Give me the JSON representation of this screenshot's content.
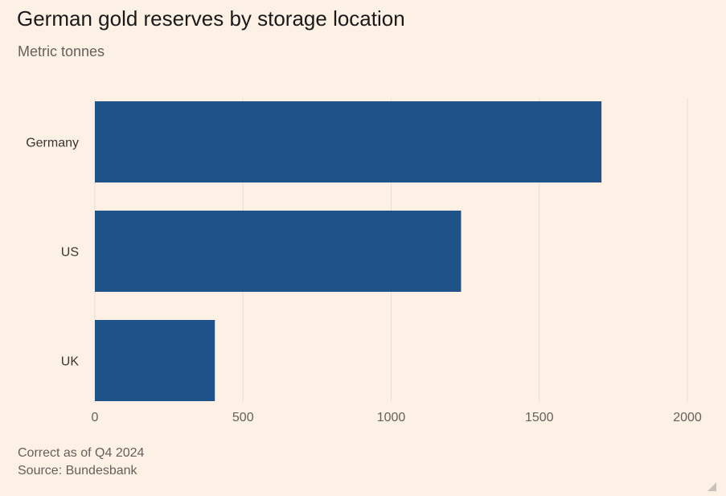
{
  "chart_data": {
    "type": "bar",
    "orientation": "horizontal",
    "title": "German gold reserves by storage location",
    "subtitle": "Metric tonnes",
    "categories": [
      "Germany",
      "US",
      "UK"
    ],
    "values": [
      1710,
      1236,
      405
    ],
    "xlim": [
      0,
      2000
    ],
    "xticks": [
      "0",
      "500",
      "1000",
      "1500",
      "2000"
    ],
    "grid": true,
    "bar_color": "#1f5289",
    "note": "Correct as of Q4 2024",
    "source": "Source: Bundesbank"
  }
}
